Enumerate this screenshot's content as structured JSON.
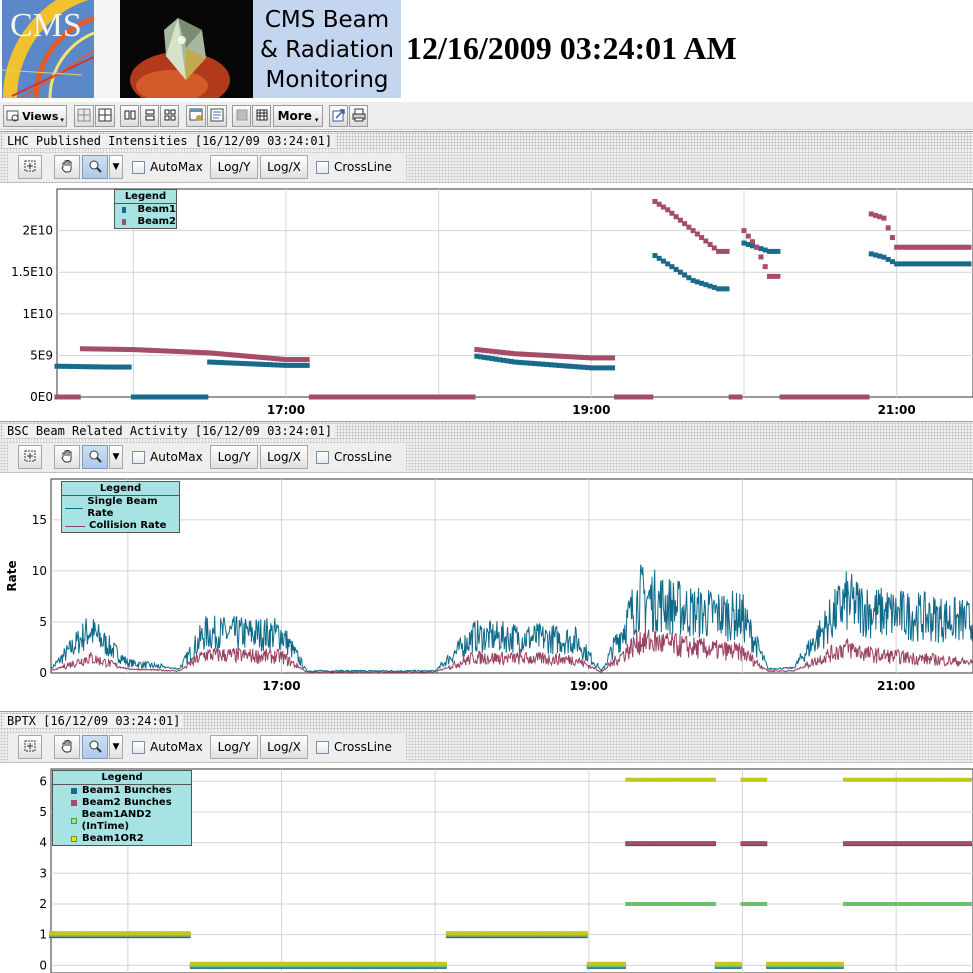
{
  "header": {
    "title_lines": [
      "CMS Beam",
      "& Radiation",
      "Monitoring"
    ],
    "timestamp": "12/16/2009 03:24:01 AM",
    "logo_text": "CMS"
  },
  "toolbar": {
    "views_label": "Views",
    "more_label": "More"
  },
  "panels": [
    {
      "title": "LHC Published Intensities  [16/12/09 03:24:01]",
      "tools": {
        "automax": "AutoMax",
        "logy": "Log/Y",
        "logx": "Log/X",
        "crossline": "CrossLine"
      },
      "legend_title": "Legend",
      "legend": [
        "Beam1",
        "Beam2"
      ]
    },
    {
      "title": "BSC Beam Related Activity  [16/12/09 03:24:01]",
      "tools": {
        "automax": "AutoMax",
        "logy": "Log/Y",
        "logx": "Log/X",
        "crossline": "CrossLine"
      },
      "legend_title": "Legend",
      "legend": [
        "Single Beam Rate",
        "Collision Rate"
      ]
    },
    {
      "title": "BPTX  [16/12/09 03:24:01]",
      "tools": {
        "automax": "AutoMax",
        "logy": "Log/Y",
        "logx": "Log/X",
        "crossline": "CrossLine"
      },
      "legend_title": "Legend",
      "legend": [
        "Beam1 Bunches",
        "Beam2 Bunches",
        "Beam1AND2 (InTime)",
        "Beam1OR2"
      ]
    }
  ],
  "colors": {
    "beam1": "#1a6a8c",
    "beam2": "#a44c6a",
    "and": "#6cc06c",
    "or": "#c6c61a",
    "single_rate": "#0f6a8a",
    "collision_rate": "#9a4264",
    "legend_bg": "#a7e3e3",
    "title_box": "#c4d5ef"
  },
  "chart_data": [
    {
      "type": "scatter",
      "xlabel": "",
      "ylabel": "",
      "x_ticks": [
        "17:00",
        "19:00",
        "21:00"
      ],
      "y_ticks": [
        "0E0",
        "5E9",
        "1E10",
        "1.5E10",
        "2E10"
      ],
      "xlim": [
        "15:30",
        "21:30"
      ],
      "ylim": [
        0,
        25000000000.0
      ],
      "grid": true,
      "legend_position": "top-left",
      "series": [
        {
          "name": "Beam1",
          "x": [
            "15:30",
            "15:50",
            "16:00",
            "16:15",
            "16:30",
            "17:00",
            "17:10",
            "18:00",
            "18:15",
            "18:30",
            "19:00",
            "19:10",
            "19:20",
            "19:25",
            "19:30",
            "19:40",
            "19:50",
            "19:55",
            "20:00",
            "20:05",
            "20:10",
            "20:15",
            "20:40",
            "20:50",
            "20:55",
            "21:00",
            "21:30"
          ],
          "y": [
            3700000000.0,
            3600000000.0,
            0,
            0,
            4200000000.0,
            3800000000.0,
            0,
            0,
            4900000000.0,
            4200000000.0,
            3500000000.0,
            0,
            0,
            17000000000.0,
            16000000000.0,
            14000000000.0,
            13000000000.0,
            0,
            18500000000.0,
            18000000000.0,
            17500000000.0,
            0,
            0,
            17200000000.0,
            16800000000.0,
            16000000000.0,
            16000000000.0
          ]
        },
        {
          "name": "Beam2",
          "x": [
            "15:30",
            "15:40",
            "16:00",
            "16:30",
            "17:00",
            "17:10",
            "18:00",
            "18:15",
            "18:30",
            "19:00",
            "19:10",
            "19:20",
            "19:25",
            "19:30",
            "19:40",
            "19:50",
            "19:55",
            "20:00",
            "20:05",
            "20:10",
            "20:15",
            "20:40",
            "20:50",
            "20:55",
            "21:00",
            "21:30"
          ],
          "y": [
            0,
            5800000000.0,
            5700000000.0,
            5300000000.0,
            4500000000.0,
            0,
            0,
            5700000000.0,
            5200000000.0,
            4700000000.0,
            0,
            0,
            23500000000.0,
            22500000000.0,
            20000000000.0,
            17500000000.0,
            0,
            20000000000.0,
            18000000000.0,
            14500000000.0,
            0,
            0,
            22000000000.0,
            21500000000.0,
            18000000000.0,
            18000000000.0
          ]
        }
      ]
    },
    {
      "type": "line",
      "xlabel": "",
      "ylabel": "Rate",
      "x_ticks": [
        "17:00",
        "19:00",
        "21:00"
      ],
      "y_ticks": [
        "0",
        "5",
        "10",
        "15"
      ],
      "xlim": [
        "15:30",
        "21:30"
      ],
      "ylim": [
        0,
        19
      ],
      "grid": true,
      "legend_position": "top-left",
      "series": [
        {
          "name": "Single Beam Rate",
          "x": [
            "15:30",
            "15:45",
            "16:00",
            "16:20",
            "16:30",
            "17:00",
            "17:10",
            "18:00",
            "18:15",
            "18:40",
            "18:55",
            "19:05",
            "19:20",
            "19:40",
            "20:00",
            "20:10",
            "20:20",
            "20:40",
            "20:50",
            "21:30"
          ],
          "y": [
            0.4,
            4.2,
            1.0,
            0.4,
            3.9,
            3.8,
            0.2,
            0.2,
            3.6,
            3.4,
            3.2,
            0.2,
            7.5,
            6.0,
            5.5,
            0.4,
            0.5,
            7.0,
            6.0,
            5.0
          ]
        },
        {
          "name": "Collision Rate",
          "x": [
            "15:30",
            "15:45",
            "16:00",
            "16:20",
            "16:30",
            "17:00",
            "17:10",
            "18:00",
            "18:15",
            "18:40",
            "18:55",
            "19:05",
            "19:20",
            "19:40",
            "20:00",
            "20:10",
            "20:20",
            "20:40",
            "20:50",
            "21:30"
          ],
          "y": [
            0.2,
            1.5,
            0.4,
            0.2,
            1.8,
            1.6,
            0.1,
            0.1,
            1.5,
            1.4,
            1.3,
            0.1,
            3.2,
            2.5,
            2.0,
            0.2,
            0.2,
            2.5,
            1.8,
            1.0
          ]
        }
      ]
    },
    {
      "type": "scatter",
      "xlabel": "",
      "ylabel": "",
      "x_ticks": [],
      "y_ticks": [
        "0",
        "1",
        "2",
        "3",
        "4",
        "5",
        "6"
      ],
      "xlim": [
        "15:30",
        "21:30"
      ],
      "ylim": [
        -0.25,
        6.4
      ],
      "grid": true,
      "legend_position": "top-left",
      "series": [
        {
          "name": "Beam1 Bunches",
          "x": [
            "15:30",
            "16:20",
            "16:25",
            "17:00",
            "17:05",
            "18:00",
            "18:05",
            "18:55",
            "19:00",
            "19:10",
            "19:15",
            "19:40",
            "19:50",
            "20:00",
            "20:10",
            "20:35",
            "20:40",
            "21:30"
          ],
          "y": [
            1,
            1,
            0,
            0,
            0,
            0,
            1,
            1,
            0,
            0,
            4,
            4,
            0,
            4,
            0,
            0,
            4,
            4
          ]
        },
        {
          "name": "Beam2 Bunches",
          "x": [
            "15:30",
            "16:20",
            "16:25",
            "17:00",
            "17:05",
            "18:00",
            "18:05",
            "18:55",
            "19:00",
            "19:10",
            "19:15",
            "19:40",
            "19:50",
            "20:00",
            "20:10",
            "20:35",
            "20:40",
            "21:30"
          ],
          "y": [
            1,
            1,
            0,
            0,
            0,
            0,
            1,
            1,
            0,
            0,
            4,
            4,
            0,
            4,
            0,
            0,
            4,
            4
          ]
        },
        {
          "name": "Beam1AND2 (InTime)",
          "x": [
            "15:30",
            "16:20",
            "16:25",
            "17:00",
            "17:05",
            "18:00",
            "18:05",
            "18:55",
            "19:00",
            "19:10",
            "19:15",
            "19:40",
            "19:50",
            "20:00",
            "20:10",
            "20:35",
            "20:40",
            "21:30"
          ],
          "y": [
            1,
            1,
            0,
            0,
            0,
            0,
            1,
            1,
            0,
            0,
            2,
            2,
            0,
            2,
            0,
            0,
            2,
            2
          ]
        },
        {
          "name": "Beam1OR2",
          "x": [
            "15:30",
            "16:20",
            "16:25",
            "17:00",
            "17:05",
            "18:00",
            "18:05",
            "18:55",
            "19:00",
            "19:10",
            "19:15",
            "19:40",
            "19:50",
            "20:00",
            "20:10",
            "20:35",
            "20:40",
            "21:30"
          ],
          "y": [
            1,
            1,
            0,
            0,
            0,
            0,
            1,
            1,
            0,
            0,
            6,
            6,
            0,
            6,
            0,
            0,
            6,
            6
          ]
        }
      ]
    }
  ]
}
